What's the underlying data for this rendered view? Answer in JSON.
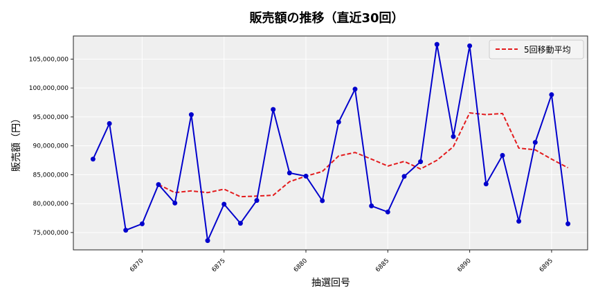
{
  "chart_data": {
    "type": "line",
    "title": "販売額の推移（直近30回）",
    "xlabel": "抽選回号",
    "ylabel": "販売額（円）",
    "x": [
      6867,
      6868,
      6869,
      6870,
      6871,
      6872,
      6873,
      6874,
      6875,
      6876,
      6877,
      6878,
      6879,
      6880,
      6881,
      6882,
      6883,
      6884,
      6885,
      6886,
      6887,
      6888,
      6889,
      6890,
      6891,
      6892,
      6893,
      6894,
      6895,
      6896
    ],
    "x_ticks": [
      6870,
      6875,
      6880,
      6885,
      6890,
      6895
    ],
    "y_ticks": [
      75000000,
      80000000,
      85000000,
      90000000,
      95000000,
      100000000,
      105000000
    ],
    "y_tick_labels": [
      "75,000,000",
      "80,000,000",
      "85,000,000",
      "90,000,000",
      "95,000,000",
      "100,000,000",
      "105,000,000"
    ],
    "xlim": [
      6865.8,
      6897.2
    ],
    "ylim": [
      72000000,
      109000000
    ],
    "grid": true,
    "legend_position": "upper right",
    "series": [
      {
        "name": "販売額",
        "color": "#0000cc",
        "style": "solid-markers",
        "show_in_legend": false,
        "values": [
          87700000,
          93850000,
          75400000,
          76500000,
          83300000,
          80100000,
          95400000,
          73600000,
          79900000,
          76600000,
          80550000,
          96300000,
          85300000,
          84750000,
          80500000,
          94100000,
          99800000,
          79600000,
          78550000,
          84700000,
          87250000,
          107550000,
          91600000,
          107300000,
          83400000,
          88350000,
          76950000,
          90600000,
          98850000,
          76500000
        ]
      },
      {
        "name": "5回移動平均",
        "color": "#e31a1c",
        "style": "dashed",
        "show_in_legend": true,
        "values": [
          null,
          null,
          null,
          null,
          83300000,
          81900000,
          82200000,
          81900000,
          82500000,
          81200000,
          81300000,
          81450000,
          83800000,
          84750000,
          85550000,
          88250000,
          88850000,
          87700000,
          86500000,
          87300000,
          86000000,
          87500000,
          89850000,
          95700000,
          95400000,
          95600000,
          89600000,
          89300000,
          87700000,
          86200000
        ]
      }
    ]
  },
  "legend": {
    "label": "5回移動平均"
  }
}
